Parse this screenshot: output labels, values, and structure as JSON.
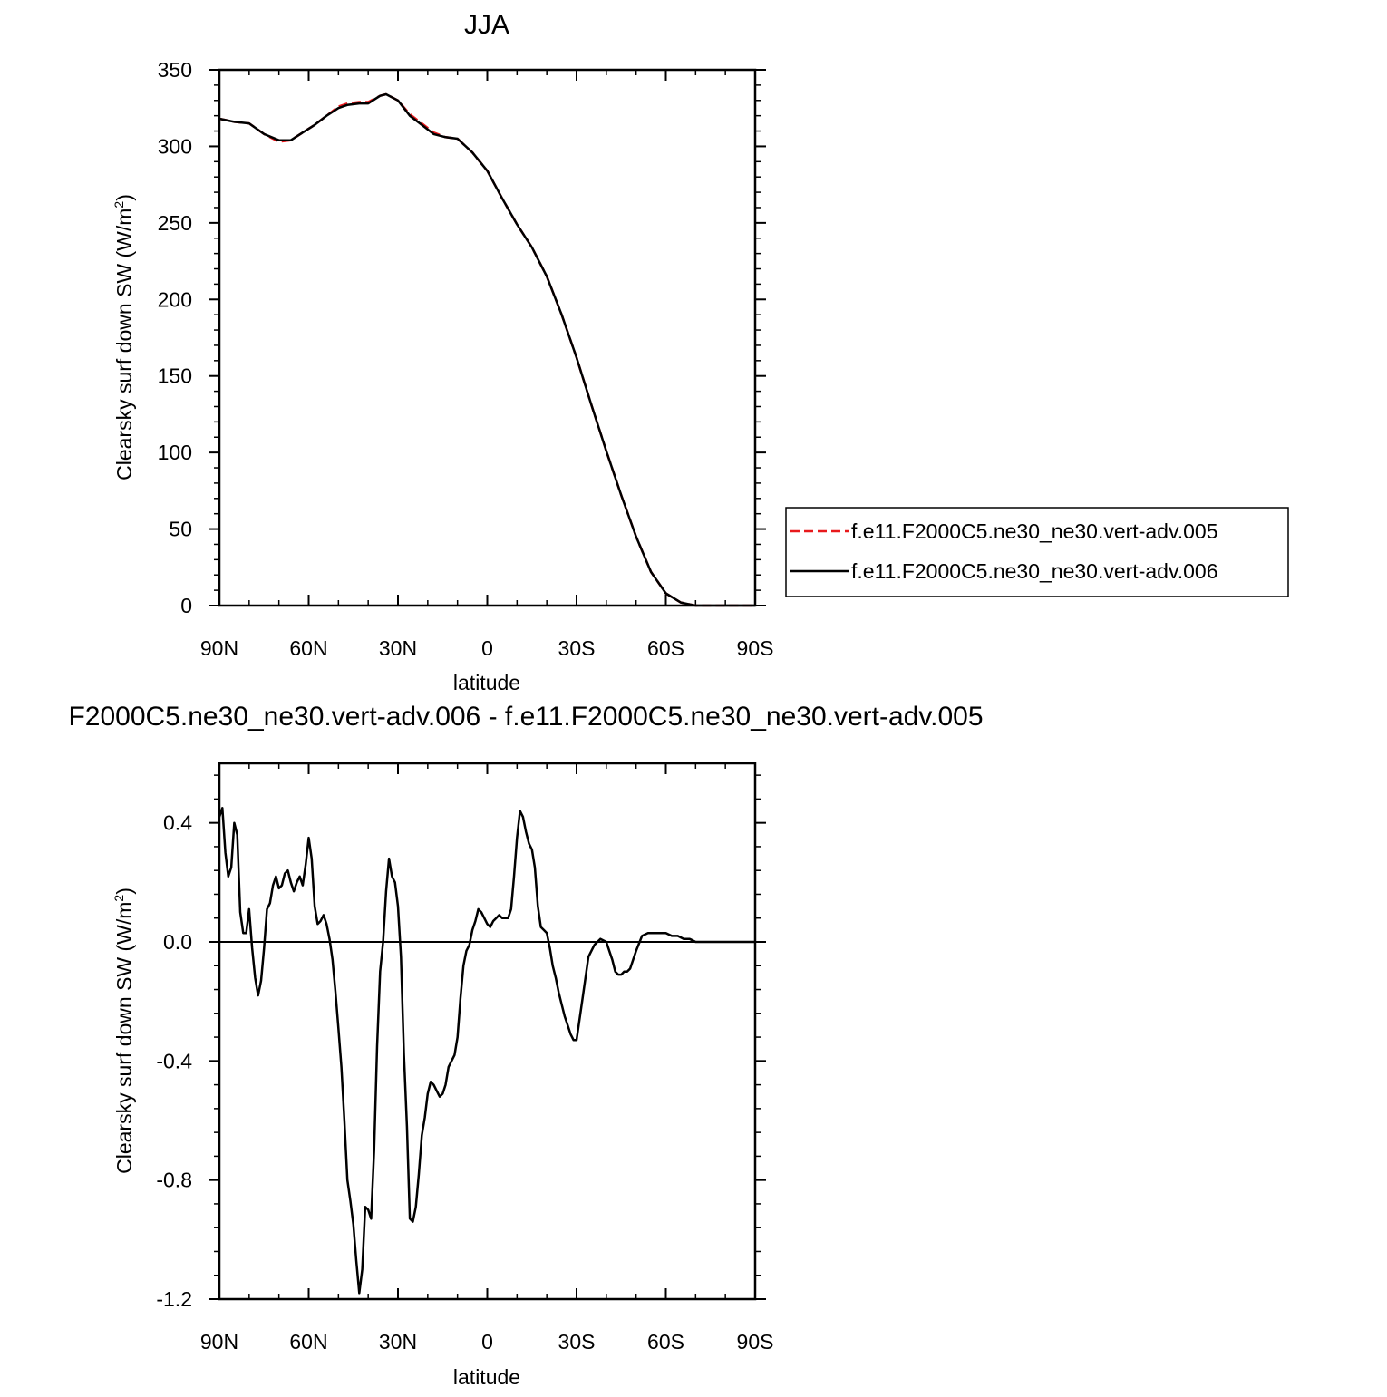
{
  "chart_data": [
    {
      "type": "line",
      "title": "JJA",
      "xlabel": "latitude",
      "ylabel": "Clearsky surf down SW (W/m",
      "ylabel_sup": "2",
      "ylabel_close": ")",
      "xlim": [
        90,
        -90
      ],
      "ylim": [
        0,
        350
      ],
      "x_ticks": [
        90,
        60,
        30,
        0,
        -30,
        -60,
        -90
      ],
      "x_tick_labels": [
        "90N",
        "60N",
        "30N",
        "0",
        "30S",
        "60S",
        "90S"
      ],
      "y_ticks": [
        0,
        50,
        100,
        150,
        200,
        250,
        300,
        350
      ],
      "y_tick_labels": [
        "0",
        "50",
        "100",
        "150",
        "200",
        "250",
        "300",
        "350"
      ],
      "legend_position": "right-outside",
      "x": [
        90,
        85,
        80,
        75,
        70,
        66,
        62,
        58,
        54,
        50,
        47,
        43,
        40,
        36,
        34,
        30,
        26,
        22,
        18,
        14,
        10,
        5,
        0,
        -5,
        -10,
        -15,
        -20,
        -25,
        -30,
        -35,
        -40,
        -45,
        -50,
        -55,
        -60,
        -65,
        -70,
        -75,
        -80,
        -85,
        -90
      ],
      "series": [
        {
          "name": "f.e11.F2000C5.ne30_ne30.vert-adv.005",
          "color": "#e8191c",
          "dash": "dashed",
          "values": [
            318,
            316,
            315,
            308,
            303,
            304,
            309,
            314,
            320,
            326,
            328,
            329,
            329,
            333,
            334,
            330,
            321,
            315,
            309,
            306,
            305,
            296,
            284,
            266,
            249,
            234,
            215,
            190,
            162,
            131,
            101,
            72,
            45,
            22,
            8,
            2,
            0,
            0,
            0,
            0,
            0
          ]
        },
        {
          "name": "f.e11.F2000C5.ne30_ne30.vert-adv.006",
          "color": "#000000",
          "dash": "solid",
          "values": [
            318,
            316,
            315,
            308,
            304,
            304,
            309,
            314,
            320,
            325,
            327,
            328,
            328,
            333,
            334,
            330,
            320,
            314,
            308,
            306,
            305,
            296,
            284,
            266,
            249,
            234,
            215,
            190,
            162,
            131,
            101,
            72,
            45,
            22,
            8,
            2,
            0,
            0,
            0,
            0,
            0
          ]
        }
      ]
    },
    {
      "type": "line",
      "title": "F2000C5.ne30_ne30.vert-adv.006 - f.e11.F2000C5.ne30_ne30.vert-adv.005",
      "xlabel": "latitude",
      "ylabel": "Clearsky surf down SW (W/m",
      "ylabel_sup": "2",
      "ylabel_close": ")",
      "xlim": [
        90,
        -90
      ],
      "ylim": [
        -1.2,
        0.6
      ],
      "x_ticks": [
        90,
        60,
        30,
        0,
        -30,
        -60,
        -90
      ],
      "x_tick_labels": [
        "90N",
        "60N",
        "30N",
        "0",
        "30S",
        "60S",
        "90S"
      ],
      "y_ticks": [
        -1.2,
        -0.8,
        -0.4,
        0.0,
        0.4
      ],
      "y_tick_labels": [
        "-1.2",
        "-0.8",
        "-0.4",
        "0.0",
        "0.4"
      ],
      "x": [
        90,
        89,
        88,
        87,
        86,
        85,
        84,
        83,
        82,
        81,
        80,
        79,
        78,
        77,
        76,
        75,
        74,
        73,
        72,
        71,
        70,
        69,
        68,
        67,
        66,
        65,
        64,
        63,
        62,
        61,
        60,
        59,
        58,
        57,
        56,
        55,
        54,
        53,
        52,
        51,
        50,
        49,
        48,
        47,
        46,
        45,
        44,
        43,
        42,
        41,
        40,
        39,
        38,
        37,
        36,
        35,
        34,
        33,
        32,
        31,
        30,
        29,
        28,
        27,
        26,
        25,
        24,
        23,
        22,
        21,
        20,
        19,
        18,
        17,
        16,
        15,
        14,
        13,
        12,
        11,
        10,
        9,
        8,
        7,
        6,
        5,
        4,
        3,
        2,
        1,
        0,
        -1,
        -2,
        -3,
        -4,
        -5,
        -6,
        -7,
        -8,
        -9,
        -10,
        -11,
        -12,
        -13,
        -14,
        -15,
        -16,
        -17,
        -18,
        -19,
        -20,
        -21,
        -22,
        -23,
        -24,
        -25,
        -26,
        -27,
        -28,
        -29,
        -30,
        -32,
        -34,
        -36,
        -38,
        -40,
        -42,
        -43,
        -44,
        -45,
        -46,
        -47,
        -48,
        -50,
        -52,
        -54,
        -56,
        -58,
        -60,
        -62,
        -64,
        -66,
        -68,
        -70,
        -72,
        -74,
        -76,
        -78,
        -80,
        -85,
        -90
      ],
      "series": [
        {
          "name": "",
          "color": "#000000",
          "dash": "solid",
          "values": [
            0.42,
            0.45,
            0.3,
            0.22,
            0.25,
            0.4,
            0.36,
            0.1,
            0.03,
            0.03,
            0.11,
            -0.02,
            -0.12,
            -0.18,
            -0.13,
            -0.02,
            0.11,
            0.13,
            0.19,
            0.22,
            0.18,
            0.19,
            0.23,
            0.24,
            0.2,
            0.17,
            0.2,
            0.22,
            0.19,
            0.26,
            0.35,
            0.28,
            0.12,
            0.06,
            0.07,
            0.09,
            0.06,
            0.01,
            -0.06,
            -0.17,
            -0.29,
            -0.42,
            -0.6,
            -0.8,
            -0.87,
            -0.95,
            -1.07,
            -1.18,
            -1.1,
            -0.89,
            -0.9,
            -0.93,
            -0.7,
            -0.35,
            -0.1,
            0.0,
            0.17,
            0.28,
            0.22,
            0.2,
            0.12,
            -0.05,
            -0.38,
            -0.62,
            -0.93,
            -0.94,
            -0.89,
            -0.78,
            -0.65,
            -0.59,
            -0.51,
            -0.47,
            -0.48,
            -0.5,
            -0.52,
            -0.51,
            -0.48,
            -0.42,
            -0.4,
            -0.38,
            -0.32,
            -0.19,
            -0.08,
            -0.03,
            -0.01,
            0.04,
            0.07,
            0.11,
            0.1,
            0.08,
            0.06,
            0.05,
            0.07,
            0.08,
            0.09,
            0.08,
            0.08,
            0.08,
            0.11,
            0.22,
            0.35,
            0.44,
            0.42,
            0.37,
            0.33,
            0.31,
            0.25,
            0.12,
            0.05,
            0.04,
            0.03,
            -0.02,
            -0.08,
            -0.12,
            -0.17,
            -0.21,
            -0.25,
            -0.28,
            -0.31,
            -0.33,
            -0.33,
            -0.19,
            -0.05,
            -0.01,
            0.01,
            0.0,
            -0.06,
            -0.1,
            -0.11,
            -0.11,
            -0.1,
            -0.1,
            -0.09,
            -0.03,
            0.02,
            0.03,
            0.03,
            0.03,
            0.03,
            0.02,
            0.02,
            0.01,
            0.01,
            0.0,
            0.0,
            0.0,
            0.0,
            0.0,
            0.0,
            0.0,
            0.0
          ]
        }
      ]
    }
  ]
}
